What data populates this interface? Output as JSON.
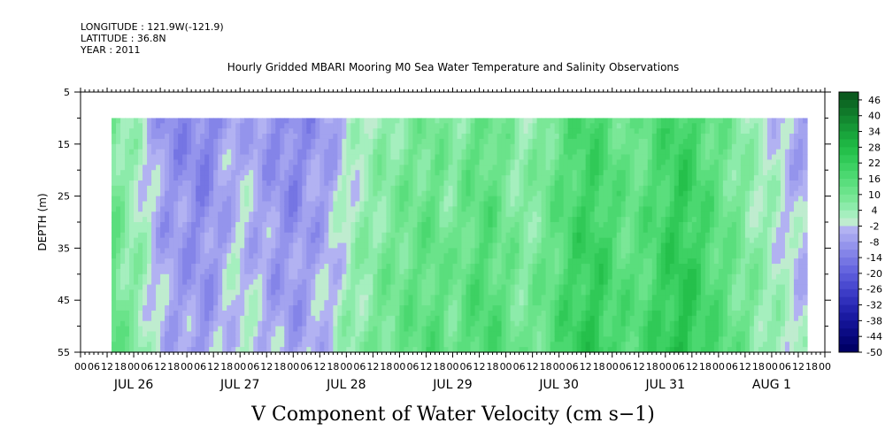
{
  "header": {
    "longitude": "LONGITUDE : 121.9W(-121.9)",
    "latitude": "LATITUDE : 36.8N",
    "year": "YEAR : 2011"
  },
  "chart_data": {
    "type": "heatmap",
    "title": "Hourly Gridded MBARI Mooring M0 Sea Water Temperature and Salinity Observations",
    "xlabel": "V Component of Water Velocity (cm s−1)",
    "ylabel": "DEPTH (m)",
    "y_ticks": [
      "5",
      "15",
      "25",
      "35",
      "45",
      "55"
    ],
    "ylim": [
      5,
      55
    ],
    "y_data_range": [
      10,
      55
    ],
    "x_hour_ticks": [
      "00",
      "06",
      "12",
      "18",
      "00",
      "06",
      "12",
      "18",
      "00",
      "06",
      "12",
      "18",
      "00",
      "06",
      "12",
      "18",
      "00",
      "06",
      "12",
      "18",
      "00",
      "06",
      "12",
      "18",
      "00",
      "06",
      "12",
      "18",
      "00",
      "06",
      "12",
      "18",
      "00",
      "06",
      "12",
      "18",
      "00",
      "06",
      "12",
      "18",
      "00",
      "06",
      "12",
      "18",
      "00",
      "06",
      "12",
      "18",
      "00",
      "06",
      "12",
      "18",
      "00",
      "06",
      "12",
      "18",
      "00"
    ],
    "x_day_labels": [
      "JUL 26",
      "JUL 27",
      "JUL 28",
      "JUL 29",
      "JUL 30",
      "JUL 31",
      "AUG  1"
    ],
    "x_range_hours": [
      0,
      168
    ],
    "data_start_hour": 7,
    "colorbar": {
      "labels": [
        "46",
        "40",
        "34",
        "28",
        "22",
        "16",
        "10",
        "4",
        "-2",
        "-8",
        "-14",
        "-20",
        "-26",
        "-32",
        "-38",
        "-44",
        "-50"
      ],
      "levels": [
        49,
        46,
        43,
        40,
        37,
        34,
        31,
        28,
        25,
        22,
        19,
        16,
        13,
        10,
        7,
        4,
        1,
        -2,
        -5,
        -8,
        -11,
        -14,
        -17,
        -20,
        -23,
        -26,
        -29,
        -32,
        -35,
        -38,
        -41,
        -44,
        -47,
        -50
      ],
      "colors": [
        "#0a5a1e",
        "#0d6a24",
        "#10792a",
        "#138830",
        "#169736",
        "#19a63c",
        "#1eb543",
        "#25c04b",
        "#30c957",
        "#3dd163",
        "#4bd870",
        "#5ade7d",
        "#6ae38a",
        "#7ae797",
        "#8cebaa",
        "#a5efbe",
        "#bfeccf",
        "#b2b2f2",
        "#a3a3ef",
        "#9494ec",
        "#8484e8",
        "#7575e3",
        "#6666df",
        "#5858d8",
        "#4a4ad0",
        "#3c3cc6",
        "#3030bb",
        "#2424ae",
        "#1a1aa1",
        "#121293",
        "#0b0b84",
        "#050575",
        "#000066"
      ]
    },
    "field_profile": [
      {
        "t": 7,
        "v": 12
      },
      {
        "t": 10,
        "v": 6
      },
      {
        "t": 14,
        "v": 2
      },
      {
        "t": 17,
        "v": -4
      },
      {
        "t": 20,
        "v": -8
      },
      {
        "t": 24,
        "v": -9
      },
      {
        "t": 28,
        "v": -11
      },
      {
        "t": 32,
        "v": -6
      },
      {
        "t": 36,
        "v": -2
      },
      {
        "t": 40,
        "v": -5
      },
      {
        "t": 44,
        "v": -8
      },
      {
        "t": 48,
        "v": -10
      },
      {
        "t": 52,
        "v": -7
      },
      {
        "t": 56,
        "v": -5
      },
      {
        "t": 60,
        "v": 1
      },
      {
        "t": 64,
        "v": 4
      },
      {
        "t": 68,
        "v": 7
      },
      {
        "t": 72,
        "v": 9
      },
      {
        "t": 76,
        "v": 11
      },
      {
        "t": 80,
        "v": 12
      },
      {
        "t": 84,
        "v": 8
      },
      {
        "t": 88,
        "v": 13
      },
      {
        "t": 92,
        "v": 15
      },
      {
        "t": 96,
        "v": 10
      },
      {
        "t": 100,
        "v": 6
      },
      {
        "t": 104,
        "v": 9
      },
      {
        "t": 108,
        "v": 14
      },
      {
        "t": 112,
        "v": 19
      },
      {
        "t": 116,
        "v": 21
      },
      {
        "t": 120,
        "v": 16
      },
      {
        "t": 124,
        "v": 12
      },
      {
        "t": 128,
        "v": 15
      },
      {
        "t": 132,
        "v": 20
      },
      {
        "t": 136,
        "v": 23
      },
      {
        "t": 140,
        "v": 18
      },
      {
        "t": 144,
        "v": 13
      },
      {
        "t": 148,
        "v": 9
      },
      {
        "t": 152,
        "v": 5
      },
      {
        "t": 156,
        "v": 2
      },
      {
        "t": 160,
        "v": -2
      },
      {
        "t": 163,
        "v": -4
      }
    ]
  }
}
